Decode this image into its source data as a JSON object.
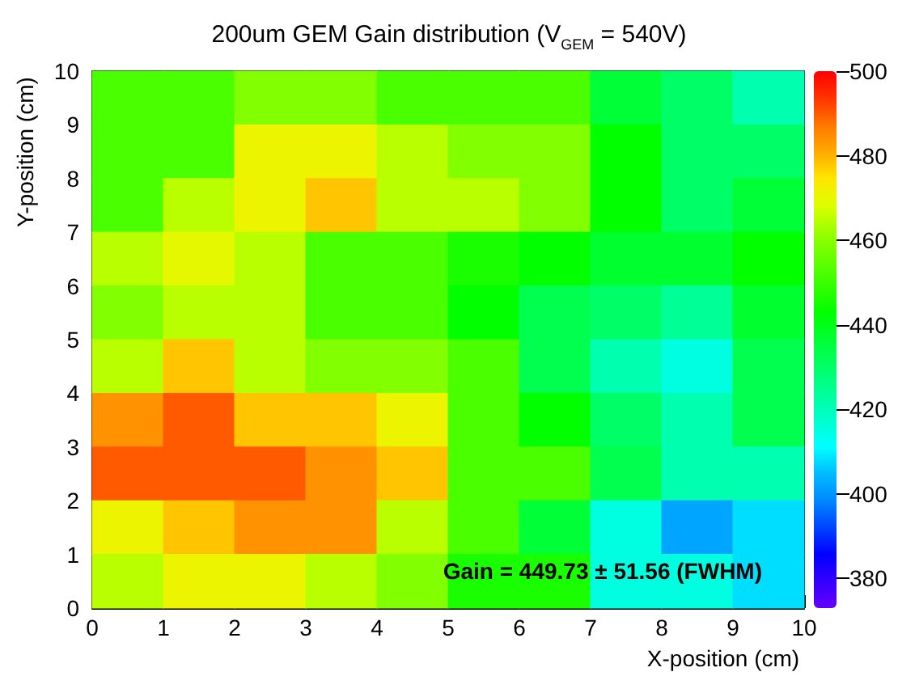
{
  "chart_data": {
    "type": "heatmap",
    "title": "200um GEM Gain distribution (V$_{GEM}$ = 540V)",
    "xlabel": "X-position (cm)",
    "ylabel": "Y-position (cm)",
    "xlim": [
      0,
      10
    ],
    "xticks": [
      0,
      1,
      2,
      3,
      4,
      5,
      6,
      7,
      8,
      9,
      10
    ],
    "ylim": [
      0,
      10
    ],
    "yticks": [
      0,
      1,
      2,
      3,
      4,
      5,
      6,
      7,
      8,
      9,
      10
    ],
    "cells": [
      [
        452,
        452,
        459,
        459,
        452,
        452,
        452,
        436,
        430,
        421
      ],
      [
        452,
        452,
        471,
        471,
        465,
        459,
        459,
        443,
        430,
        430
      ],
      [
        452,
        465,
        471,
        478,
        465,
        465,
        459,
        443,
        430,
        436
      ],
      [
        465,
        470,
        465,
        452,
        452,
        446,
        443,
        437,
        437,
        443
      ],
      [
        459,
        465,
        465,
        452,
        452,
        443,
        433,
        430,
        424,
        437
      ],
      [
        465,
        478,
        465,
        459,
        459,
        452,
        433,
        421,
        415,
        433
      ],
      [
        484,
        490,
        478,
        478,
        471,
        452,
        443,
        430,
        421,
        433
      ],
      [
        490,
        490,
        490,
        484,
        478,
        452,
        452,
        433,
        421,
        421
      ],
      [
        471,
        478,
        484,
        484,
        465,
        452,
        436,
        415,
        402,
        408
      ],
      [
        465,
        471,
        471,
        465,
        459,
        446,
        446,
        415,
        415,
        408
      ]
    ],
    "clim": [
      373,
      500
    ],
    "cticks": [
      380,
      400,
      420,
      440,
      460,
      480,
      500
    ],
    "annotations": [
      "Gain = 449.73 ± 51.56 (FWHM)"
    ]
  }
}
